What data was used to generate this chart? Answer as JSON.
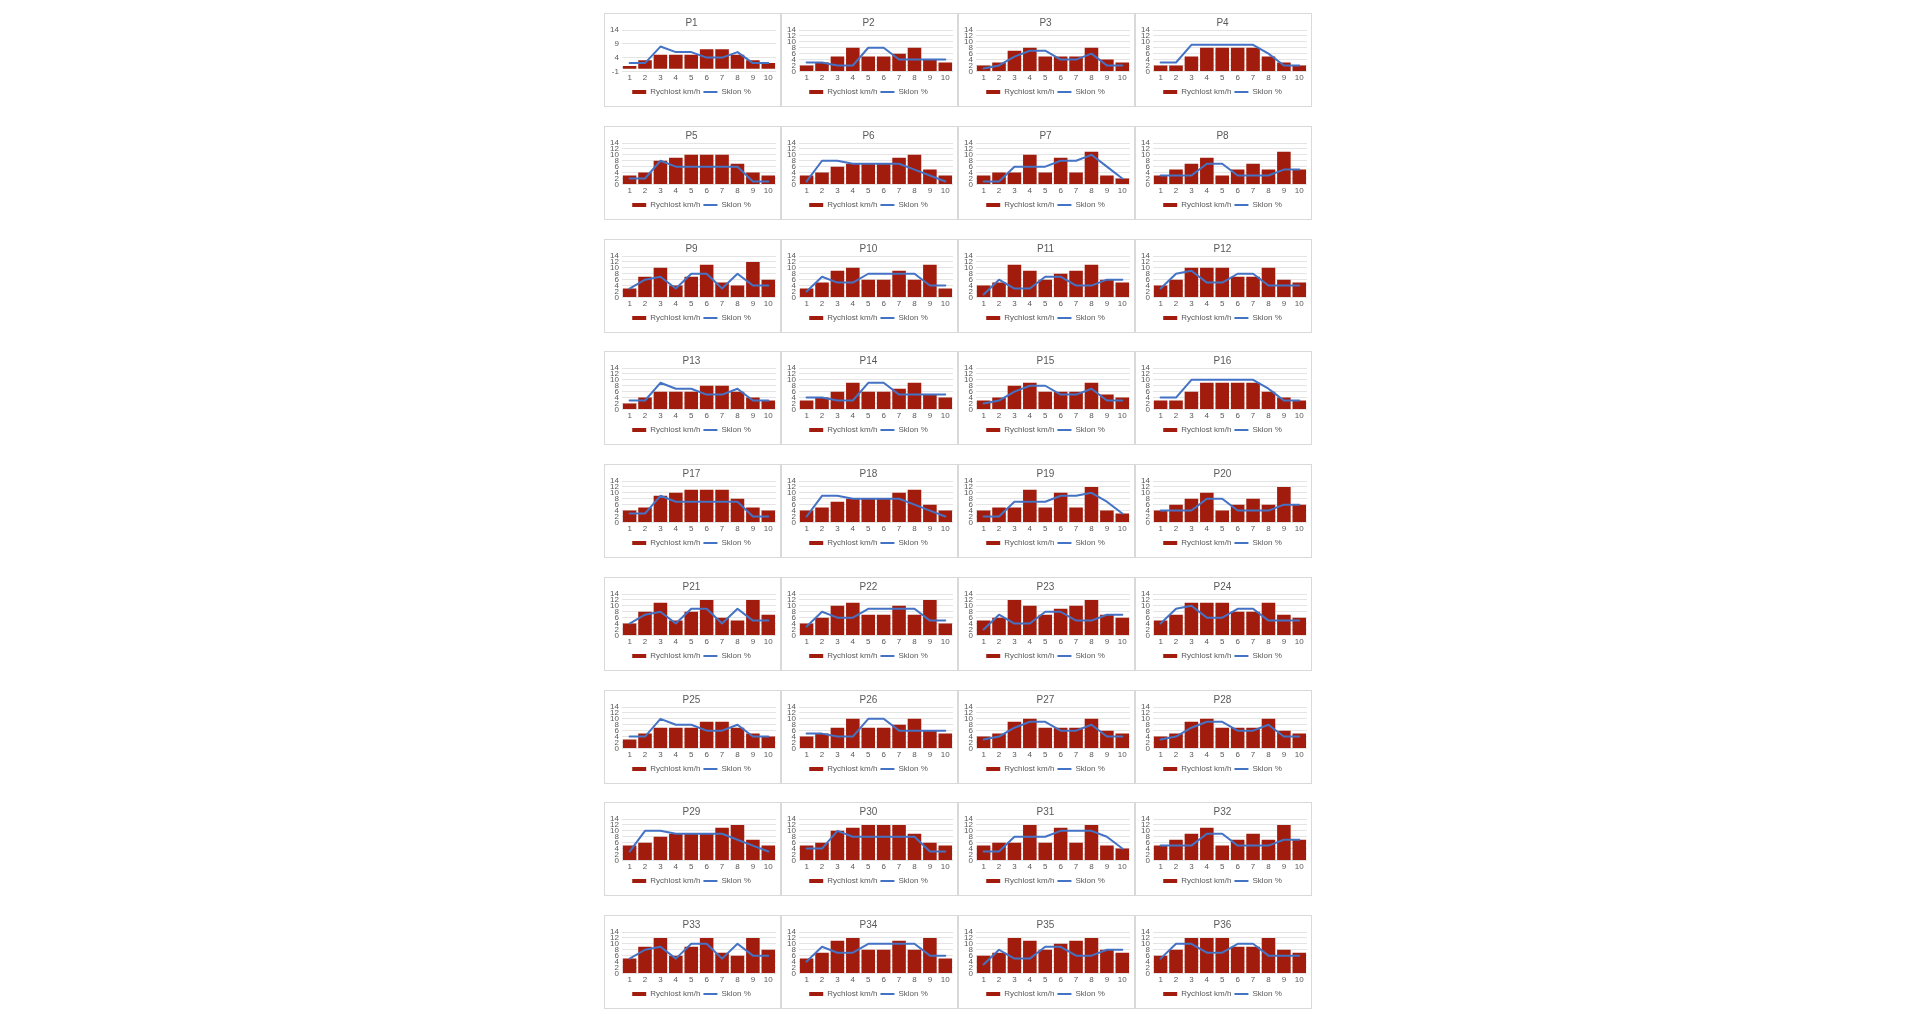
{
  "chart_data": [
    {
      "type": "bar",
      "title": "P1",
      "categories": [
        "1",
        "2",
        "3",
        "4",
        "5",
        "6",
        "7",
        "8",
        "9",
        "10"
      ],
      "series": [
        {
          "name": "Rychlost km/h",
          "color": "#a11c0d",
          "values": [
            1,
            3,
            5,
            5,
            5,
            7,
            7,
            5,
            3,
            2
          ]
        },
        {
          "name": "Sklon %",
          "type": "line",
          "color": "#4472c4",
          "values": [
            2,
            2,
            8,
            6,
            6,
            4,
            4,
            6,
            2,
            2
          ]
        }
      ],
      "ylim": [
        -1,
        14
      ],
      "yticks": [
        -1,
        4,
        9,
        14
      ],
      "grid": "y",
      "legend": "bottom"
    },
    {
      "type": "bar",
      "title": "P2",
      "categories": [
        "1",
        "2",
        "3",
        "4",
        "5",
        "6",
        "7",
        "8",
        "9",
        "10"
      ],
      "series": [
        {
          "name": "Rychlost km/h",
          "color": "#a11c0d",
          "values": [
            2,
            3,
            5,
            8,
            5,
            5,
            6,
            8,
            4,
            3
          ]
        },
        {
          "name": "Sklon %",
          "type": "line",
          "color": "#4472c4",
          "values": [
            3,
            3,
            2,
            2,
            8,
            8,
            4,
            4,
            4,
            4
          ]
        }
      ],
      "ylim": [
        0,
        14
      ],
      "yticks": [
        0,
        2,
        4,
        6,
        8,
        10,
        12,
        14
      ],
      "grid": "y",
      "legend": "bottom"
    },
    {
      "type": "bar",
      "title": "P3",
      "categories": [
        "1",
        "2",
        "3",
        "4",
        "5",
        "6",
        "7",
        "8",
        "9",
        "10"
      ],
      "series": [
        {
          "name": "Rychlost km/h",
          "color": "#a11c0d",
          "values": [
            2,
            3,
            7,
            8,
            5,
            5,
            5,
            8,
            4,
            3
          ]
        },
        {
          "name": "Sklon %",
          "type": "line",
          "color": "#4472c4",
          "values": [
            1,
            2,
            5,
            7,
            7,
            4,
            4,
            6,
            2,
            2
          ]
        }
      ],
      "ylim": [
        0,
        14
      ],
      "yticks": [
        0,
        2,
        4,
        6,
        8,
        10,
        12,
        14
      ],
      "grid": "y",
      "legend": "bottom"
    },
    {
      "type": "bar",
      "title": "P4",
      "categories": [
        "1",
        "2",
        "3",
        "4",
        "5",
        "6",
        "7",
        "8",
        "9",
        "10"
      ],
      "series": [
        {
          "name": "Rychlost km/h",
          "color": "#a11c0d",
          "values": [
            2,
            2,
            5,
            8,
            8,
            8,
            8,
            5,
            3,
            2
          ]
        },
        {
          "name": "Sklon %",
          "type": "line",
          "color": "#4472c4",
          "values": [
            3,
            3,
            9,
            9,
            9,
            9,
            9,
            6,
            2,
            2
          ]
        }
      ],
      "ylim": [
        0,
        14
      ],
      "yticks": [
        0,
        2,
        4,
        6,
        8,
        10,
        12,
        14
      ],
      "grid": "y",
      "legend": "bottom"
    },
    {
      "type": "bar",
      "title": "P5",
      "categories": [
        "1",
        "2",
        "3",
        "4",
        "5",
        "6",
        "7",
        "8",
        "9",
        "10"
      ],
      "series": [
        {
          "name": "Rychlost km/h",
          "color": "#a11c0d",
          "values": [
            3,
            4,
            8,
            9,
            10,
            10,
            10,
            7,
            4,
            3
          ]
        },
        {
          "name": "Sklon %",
          "type": "line",
          "color": "#4472c4",
          "values": [
            2,
            2,
            8,
            6,
            6,
            6,
            6,
            6,
            1,
            1
          ]
        }
      ],
      "ylim": [
        0,
        14
      ],
      "yticks": [
        0,
        2,
        4,
        6,
        8,
        10,
        12,
        14
      ],
      "grid": "y",
      "legend": "bottom"
    },
    {
      "type": "bar",
      "title": "P6",
      "categories": [
        "1",
        "2",
        "3",
        "4",
        "5",
        "6",
        "7",
        "8",
        "9",
        "10"
      ],
      "series": [
        {
          "name": "Rychlost km/h",
          "color": "#a11c0d",
          "values": [
            3,
            4,
            6,
            7,
            7,
            7,
            9,
            10,
            5,
            3
          ]
        },
        {
          "name": "Sklon %",
          "type": "line",
          "color": "#4472c4",
          "values": [
            1,
            8,
            8,
            7,
            7,
            7,
            7,
            5,
            3,
            1
          ]
        }
      ],
      "ylim": [
        0,
        14
      ],
      "yticks": [
        0,
        2,
        4,
        6,
        8,
        10,
        12,
        14
      ],
      "grid": "y",
      "legend": "bottom"
    },
    {
      "type": "bar",
      "title": "P7",
      "categories": [
        "1",
        "2",
        "3",
        "4",
        "5",
        "6",
        "7",
        "8",
        "9",
        "10"
      ],
      "series": [
        {
          "name": "Rychlost km/h",
          "color": "#a11c0d",
          "values": [
            3,
            4,
            4,
            10,
            4,
            9,
            4,
            11,
            3,
            2
          ]
        },
        {
          "name": "Sklon %",
          "type": "line",
          "color": "#4472c4",
          "values": [
            1,
            1,
            6,
            6,
            6,
            8,
            8,
            10,
            6,
            2
          ]
        }
      ],
      "ylim": [
        0,
        14
      ],
      "yticks": [
        0,
        2,
        4,
        6,
        8,
        10,
        12,
        14
      ],
      "grid": "y",
      "legend": "bottom"
    },
    {
      "type": "bar",
      "title": "P8",
      "categories": [
        "1",
        "2",
        "3",
        "4",
        "5",
        "6",
        "7",
        "8",
        "9",
        "10"
      ],
      "series": [
        {
          "name": "Rychlost km/h",
          "color": "#a11c0d",
          "values": [
            3,
            5,
            7,
            9,
            3,
            5,
            7,
            5,
            11,
            5
          ]
        },
        {
          "name": "Sklon %",
          "type": "line",
          "color": "#4472c4",
          "values": [
            3,
            3,
            3,
            7,
            7,
            3,
            3,
            3,
            5,
            5
          ]
        }
      ],
      "ylim": [
        0,
        14
      ],
      "yticks": [
        0,
        2,
        4,
        6,
        8,
        10,
        12,
        14
      ],
      "grid": "y",
      "legend": "bottom"
    },
    {
      "type": "bar",
      "title": "P9",
      "categories": [
        "1",
        "2",
        "3",
        "4",
        "5",
        "6",
        "7",
        "8",
        "9",
        "10"
      ],
      "series": [
        {
          "name": "Rychlost km/h",
          "color": "#a11c0d",
          "values": [
            3,
            7,
            10,
            4,
            7,
            11,
            5,
            4,
            12,
            6
          ]
        },
        {
          "name": "Sklon %",
          "type": "line",
          "color": "#4472c4",
          "values": [
            3,
            6,
            7,
            3,
            8,
            8,
            3,
            8,
            4,
            4
          ]
        }
      ],
      "ylim": [
        0,
        14
      ],
      "yticks": [
        0,
        2,
        4,
        6,
        8,
        10,
        12,
        14
      ],
      "grid": "y",
      "legend": "bottom"
    },
    {
      "type": "bar",
      "title": "P10",
      "categories": [
        "1",
        "2",
        "3",
        "4",
        "5",
        "6",
        "7",
        "8",
        "9",
        "10"
      ],
      "series": [
        {
          "name": "Rychlost km/h",
          "color": "#a11c0d",
          "values": [
            3,
            5,
            9,
            10,
            6,
            6,
            9,
            6,
            11,
            3
          ]
        },
        {
          "name": "Sklon %",
          "type": "line",
          "color": "#4472c4",
          "values": [
            2,
            7,
            5,
            5,
            8,
            8,
            8,
            8,
            4,
            4
          ]
        }
      ],
      "ylim": [
        0,
        14
      ],
      "yticks": [
        0,
        2,
        4,
        6,
        8,
        10,
        12,
        14
      ],
      "grid": "y",
      "legend": "bottom"
    },
    {
      "type": "bar",
      "title": "P11",
      "categories": [
        "1",
        "2",
        "3",
        "4",
        "5",
        "6",
        "7",
        "8",
        "9",
        "10"
      ],
      "series": [
        {
          "name": "Rychlost km/h",
          "color": "#a11c0d",
          "values": [
            4,
            5,
            11,
            9,
            6,
            8,
            9,
            11,
            6,
            5
          ]
        },
        {
          "name": "Sklon %",
          "type": "line",
          "color": "#4472c4",
          "values": [
            1,
            6,
            3,
            3,
            7,
            7,
            4,
            4,
            6,
            6
          ]
        }
      ],
      "ylim": [
        0,
        14
      ],
      "yticks": [
        0,
        2,
        4,
        6,
        8,
        10,
        12,
        14
      ],
      "grid": "y",
      "legend": "bottom"
    },
    {
      "type": "bar",
      "title": "P12",
      "categories": [
        "1",
        "2",
        "3",
        "4",
        "5",
        "6",
        "7",
        "8",
        "9",
        "10"
      ],
      "series": [
        {
          "name": "Rychlost km/h",
          "color": "#a11c0d",
          "values": [
            4,
            6,
            10,
            10,
            10,
            7,
            7,
            10,
            6,
            5
          ]
        },
        {
          "name": "Sklon %",
          "type": "line",
          "color": "#4472c4",
          "values": [
            3,
            8,
            9,
            5,
            5,
            8,
            8,
            4,
            4,
            4
          ]
        }
      ],
      "ylim": [
        0,
        14
      ],
      "yticks": [
        0,
        2,
        4,
        6,
        8,
        10,
        12,
        14
      ],
      "grid": "y",
      "legend": "bottom"
    },
    {
      "type": "bar",
      "title": "P13",
      "categories": [
        "1",
        "2",
        "3",
        "4",
        "5",
        "6",
        "7",
        "8",
        "9",
        "10"
      ],
      "series": [
        {
          "name": "Rychlost km/h",
          "color": "#a11c0d",
          "values": [
            2,
            4,
            6,
            6,
            6,
            8,
            8,
            6,
            4,
            3
          ]
        },
        {
          "name": "Sklon %",
          "type": "line",
          "color": "#4472c4",
          "values": [
            3,
            3,
            9,
            7,
            7,
            5,
            5,
            7,
            3,
            3
          ]
        }
      ],
      "ylim": [
        0,
        14
      ],
      "yticks": [
        0,
        2,
        4,
        6,
        8,
        10,
        12,
        14
      ],
      "grid": "y",
      "legend": "bottom"
    },
    {
      "type": "bar",
      "title": "P14",
      "categories": [
        "1",
        "2",
        "3",
        "4",
        "5",
        "6",
        "7",
        "8",
        "9",
        "10"
      ],
      "series": [
        {
          "name": "Rychlost km/h",
          "color": "#a11c0d",
          "values": [
            3,
            4,
            6,
            9,
            6,
            6,
            7,
            9,
            5,
            4
          ]
        },
        {
          "name": "Sklon %",
          "type": "line",
          "color": "#4472c4",
          "values": [
            4,
            4,
            3,
            3,
            9,
            9,
            5,
            5,
            5,
            5
          ]
        }
      ],
      "ylim": [
        0,
        14
      ],
      "yticks": [
        0,
        2,
        4,
        6,
        8,
        10,
        12,
        14
      ],
      "grid": "y",
      "legend": "bottom"
    },
    {
      "type": "bar",
      "title": "P15",
      "categories": [
        "1",
        "2",
        "3",
        "4",
        "5",
        "6",
        "7",
        "8",
        "9",
        "10"
      ],
      "series": [
        {
          "name": "Rychlost km/h",
          "color": "#a11c0d",
          "values": [
            3,
            4,
            8,
            9,
            6,
            6,
            6,
            9,
            5,
            4
          ]
        },
        {
          "name": "Sklon %",
          "type": "line",
          "color": "#4472c4",
          "values": [
            2,
            3,
            6,
            8,
            8,
            5,
            5,
            7,
            3,
            3
          ]
        }
      ],
      "ylim": [
        0,
        14
      ],
      "yticks": [
        0,
        2,
        4,
        6,
        8,
        10,
        12,
        14
      ],
      "grid": "y",
      "legend": "bottom"
    },
    {
      "type": "bar",
      "title": "P16",
      "categories": [
        "1",
        "2",
        "3",
        "4",
        "5",
        "6",
        "7",
        "8",
        "9",
        "10"
      ],
      "series": [
        {
          "name": "Rychlost km/h",
          "color": "#a11c0d",
          "values": [
            3,
            3,
            6,
            9,
            9,
            9,
            9,
            6,
            4,
            3
          ]
        },
        {
          "name": "Sklon %",
          "type": "line",
          "color": "#4472c4",
          "values": [
            4,
            4,
            10,
            10,
            10,
            10,
            10,
            7,
            3,
            3
          ]
        }
      ],
      "ylim": [
        0,
        14
      ],
      "yticks": [
        0,
        2,
        4,
        6,
        8,
        10,
        12,
        14
      ],
      "grid": "y",
      "legend": "bottom"
    },
    {
      "type": "bar",
      "title": "P17",
      "categories": [
        "1",
        "2",
        "3",
        "4",
        "5",
        "6",
        "7",
        "8",
        "9",
        "10"
      ],
      "series": [
        {
          "name": "Rychlost km/h",
          "color": "#a11c0d",
          "values": [
            4,
            5,
            9,
            10,
            11,
            11,
            11,
            8,
            5,
            4
          ]
        },
        {
          "name": "Sklon %",
          "type": "line",
          "color": "#4472c4",
          "values": [
            3,
            3,
            9,
            7,
            7,
            7,
            7,
            7,
            2,
            2
          ]
        }
      ],
      "ylim": [
        0,
        14
      ],
      "yticks": [
        0,
        2,
        4,
        6,
        8,
        10,
        12,
        14
      ],
      "grid": "y",
      "legend": "bottom"
    },
    {
      "type": "bar",
      "title": "P18",
      "categories": [
        "1",
        "2",
        "3",
        "4",
        "5",
        "6",
        "7",
        "8",
        "9",
        "10"
      ],
      "series": [
        {
          "name": "Rychlost km/h",
          "color": "#a11c0d",
          "values": [
            4,
            5,
            7,
            8,
            8,
            8,
            10,
            11,
            6,
            4
          ]
        },
        {
          "name": "Sklon %",
          "type": "line",
          "color": "#4472c4",
          "values": [
            2,
            9,
            9,
            8,
            8,
            8,
            8,
            6,
            4,
            2
          ]
        }
      ],
      "ylim": [
        0,
        14
      ],
      "yticks": [
        0,
        2,
        4,
        6,
        8,
        10,
        12,
        14
      ],
      "grid": "y",
      "legend": "bottom"
    },
    {
      "type": "bar",
      "title": "P19",
      "categories": [
        "1",
        "2",
        "3",
        "4",
        "5",
        "6",
        "7",
        "8",
        "9",
        "10"
      ],
      "series": [
        {
          "name": "Rychlost km/h",
          "color": "#a11c0d",
          "values": [
            4,
            5,
            5,
            11,
            5,
            10,
            5,
            12,
            4,
            3
          ]
        },
        {
          "name": "Sklon %",
          "type": "line",
          "color": "#4472c4",
          "values": [
            2,
            2,
            7,
            7,
            7,
            9,
            9,
            10,
            7,
            3
          ]
        }
      ],
      "ylim": [
        0,
        14
      ],
      "yticks": [
        0,
        2,
        4,
        6,
        8,
        10,
        12,
        14
      ],
      "grid": "y",
      "legend": "bottom"
    },
    {
      "type": "bar",
      "title": "P20",
      "categories": [
        "1",
        "2",
        "3",
        "4",
        "5",
        "6",
        "7",
        "8",
        "9",
        "10"
      ],
      "series": [
        {
          "name": "Rychlost km/h",
          "color": "#a11c0d",
          "values": [
            4,
            6,
            8,
            10,
            4,
            6,
            8,
            6,
            12,
            6
          ]
        },
        {
          "name": "Sklon %",
          "type": "line",
          "color": "#4472c4",
          "values": [
            4,
            4,
            4,
            8,
            8,
            4,
            4,
            4,
            6,
            6
          ]
        }
      ],
      "ylim": [
        0,
        14
      ],
      "yticks": [
        0,
        2,
        4,
        6,
        8,
        10,
        12,
        14
      ],
      "grid": "y",
      "legend": "bottom"
    },
    {
      "type": "bar",
      "title": "P21",
      "categories": [
        "1",
        "2",
        "3",
        "4",
        "5",
        "6",
        "7",
        "8",
        "9",
        "10"
      ],
      "series": [
        {
          "name": "Rychlost km/h",
          "color": "#a11c0d",
          "values": [
            4,
            8,
            11,
            5,
            8,
            12,
            6,
            5,
            12,
            7
          ]
        },
        {
          "name": "Sklon %",
          "type": "line",
          "color": "#4472c4",
          "values": [
            4,
            7,
            8,
            4,
            9,
            9,
            4,
            9,
            5,
            5
          ]
        }
      ],
      "ylim": [
        0,
        14
      ],
      "yticks": [
        0,
        2,
        4,
        6,
        8,
        10,
        12,
        14
      ],
      "grid": "y",
      "legend": "bottom"
    },
    {
      "type": "bar",
      "title": "P22",
      "categories": [
        "1",
        "2",
        "3",
        "4",
        "5",
        "6",
        "7",
        "8",
        "9",
        "10"
      ],
      "series": [
        {
          "name": "Rychlost km/h",
          "color": "#a11c0d",
          "values": [
            4,
            6,
            10,
            11,
            7,
            7,
            10,
            7,
            12,
            4
          ]
        },
        {
          "name": "Sklon %",
          "type": "line",
          "color": "#4472c4",
          "values": [
            3,
            8,
            6,
            6,
            9,
            9,
            9,
            9,
            5,
            5
          ]
        }
      ],
      "ylim": [
        0,
        14
      ],
      "yticks": [
        0,
        2,
        4,
        6,
        8,
        10,
        12,
        14
      ],
      "grid": "y",
      "legend": "bottom"
    },
    {
      "type": "bar",
      "title": "P23",
      "categories": [
        "1",
        "2",
        "3",
        "4",
        "5",
        "6",
        "7",
        "8",
        "9",
        "10"
      ],
      "series": [
        {
          "name": "Rychlost km/h",
          "color": "#a11c0d",
          "values": [
            5,
            6,
            12,
            10,
            7,
            9,
            10,
            12,
            7,
            6
          ]
        },
        {
          "name": "Sklon %",
          "type": "line",
          "color": "#4472c4",
          "values": [
            2,
            7,
            4,
            4,
            8,
            8,
            5,
            5,
            7,
            7
          ]
        }
      ],
      "ylim": [
        0,
        14
      ],
      "yticks": [
        0,
        2,
        4,
        6,
        8,
        10,
        12,
        14
      ],
      "grid": "y",
      "legend": "bottom"
    },
    {
      "type": "bar",
      "title": "P24",
      "categories": [
        "1",
        "2",
        "3",
        "4",
        "5",
        "6",
        "7",
        "8",
        "9",
        "10"
      ],
      "series": [
        {
          "name": "Rychlost km/h",
          "color": "#a11c0d",
          "values": [
            5,
            7,
            11,
            11,
            11,
            8,
            8,
            11,
            7,
            6
          ]
        },
        {
          "name": "Sklon %",
          "type": "line",
          "color": "#4472c4",
          "values": [
            4,
            9,
            10,
            6,
            6,
            9,
            9,
            5,
            5,
            5
          ]
        }
      ],
      "ylim": [
        0,
        14
      ],
      "yticks": [
        0,
        2,
        4,
        6,
        8,
        10,
        12,
        14
      ],
      "grid": "y",
      "legend": "bottom"
    },
    {
      "type": "bar",
      "title": "P25",
      "categories": [
        "1",
        "2",
        "3",
        "4",
        "5",
        "6",
        "7",
        "8",
        "9",
        "10"
      ],
      "series": [
        {
          "name": "Rychlost km/h",
          "color": "#a11c0d",
          "values": [
            3,
            5,
            7,
            7,
            7,
            9,
            9,
            7,
            5,
            4
          ]
        },
        {
          "name": "Sklon %",
          "type": "line",
          "color": "#4472c4",
          "values": [
            4,
            4,
            10,
            8,
            8,
            6,
            6,
            8,
            4,
            4
          ]
        }
      ],
      "ylim": [
        0,
        14
      ],
      "yticks": [
        0,
        2,
        4,
        6,
        8,
        10,
        12,
        14
      ],
      "grid": "y",
      "legend": "bottom"
    },
    {
      "type": "bar",
      "title": "P26",
      "categories": [
        "1",
        "2",
        "3",
        "4",
        "5",
        "6",
        "7",
        "8",
        "9",
        "10"
      ],
      "series": [
        {
          "name": "Rychlost km/h",
          "color": "#a11c0d",
          "values": [
            4,
            5,
            7,
            10,
            7,
            7,
            8,
            10,
            6,
            5
          ]
        },
        {
          "name": "Sklon %",
          "type": "line",
          "color": "#4472c4",
          "values": [
            5,
            5,
            4,
            4,
            10,
            10,
            6,
            6,
            6,
            6
          ]
        }
      ],
      "ylim": [
        0,
        14
      ],
      "yticks": [
        0,
        2,
        4,
        6,
        8,
        10,
        12,
        14
      ],
      "grid": "y",
      "legend": "bottom"
    },
    {
      "type": "bar",
      "title": "P27",
      "categories": [
        "1",
        "2",
        "3",
        "4",
        "5",
        "6",
        "7",
        "8",
        "9",
        "10"
      ],
      "series": [
        {
          "name": "Rychlost km/h",
          "color": "#a11c0d",
          "values": [
            4,
            5,
            9,
            10,
            7,
            7,
            7,
            10,
            6,
            5
          ]
        },
        {
          "name": "Sklon %",
          "type": "line",
          "color": "#4472c4",
          "values": [
            3,
            4,
            7,
            9,
            9,
            6,
            6,
            8,
            4,
            4
          ]
        }
      ],
      "ylim": [
        0,
        14
      ],
      "yticks": [
        0,
        2,
        4,
        6,
        8,
        10,
        12,
        14
      ],
      "grid": "y",
      "legend": "bottom"
    },
    {
      "type": "bar",
      "title": "P28",
      "categories": [
        "1",
        "2",
        "3",
        "4",
        "5",
        "6",
        "7",
        "8",
        "9",
        "10"
      ],
      "series": [
        {
          "name": "Rychlost km/h",
          "color": "#a11c0d",
          "values": [
            4,
            5,
            9,
            10,
            7,
            7,
            7,
            10,
            6,
            5
          ]
        },
        {
          "name": "Sklon %",
          "type": "line",
          "color": "#4472c4",
          "values": [
            3,
            4,
            7,
            9,
            9,
            6,
            6,
            8,
            4,
            4
          ]
        }
      ],
      "ylim": [
        0,
        14
      ],
      "yticks": [
        0,
        2,
        4,
        6,
        8,
        10,
        12,
        14
      ],
      "grid": "y",
      "legend": "bottom"
    },
    {
      "type": "bar",
      "title": "P29",
      "categories": [
        "1",
        "2",
        "3",
        "4",
        "5",
        "6",
        "7",
        "8",
        "9",
        "10"
      ],
      "series": [
        {
          "name": "Rychlost km/h",
          "color": "#a11c0d",
          "values": [
            5,
            6,
            8,
            9,
            9,
            9,
            11,
            12,
            7,
            5
          ]
        },
        {
          "name": "Sklon %",
          "type": "line",
          "color": "#4472c4",
          "values": [
            3,
            10,
            10,
            9,
            9,
            9,
            9,
            7,
            5,
            3
          ]
        }
      ],
      "ylim": [
        0,
        14
      ],
      "yticks": [
        0,
        2,
        4,
        6,
        8,
        10,
        12,
        14
      ],
      "grid": "y",
      "legend": "bottom"
    },
    {
      "type": "bar",
      "title": "P30",
      "categories": [
        "1",
        "2",
        "3",
        "4",
        "5",
        "6",
        "7",
        "8",
        "9",
        "10"
      ],
      "series": [
        {
          "name": "Rychlost km/h",
          "color": "#a11c0d",
          "values": [
            5,
            6,
            10,
            11,
            12,
            12,
            12,
            9,
            6,
            5
          ]
        },
        {
          "name": "Sklon %",
          "type": "line",
          "color": "#4472c4",
          "values": [
            4,
            4,
            10,
            8,
            8,
            8,
            8,
            8,
            3,
            3
          ]
        }
      ],
      "ylim": [
        0,
        14
      ],
      "yticks": [
        0,
        2,
        4,
        6,
        8,
        10,
        12,
        14
      ],
      "grid": "y",
      "legend": "bottom"
    },
    {
      "type": "bar",
      "title": "P31",
      "categories": [
        "1",
        "2",
        "3",
        "4",
        "5",
        "6",
        "7",
        "8",
        "9",
        "10"
      ],
      "series": [
        {
          "name": "Rychlost km/h",
          "color": "#a11c0d",
          "values": [
            5,
            6,
            6,
            12,
            6,
            11,
            6,
            12,
            5,
            4
          ]
        },
        {
          "name": "Sklon %",
          "type": "line",
          "color": "#4472c4",
          "values": [
            3,
            3,
            8,
            8,
            8,
            10,
            10,
            10,
            8,
            4
          ]
        }
      ],
      "ylim": [
        0,
        14
      ],
      "yticks": [
        0,
        2,
        4,
        6,
        8,
        10,
        12,
        14
      ],
      "grid": "y",
      "legend": "bottom"
    },
    {
      "type": "bar",
      "title": "P32",
      "categories": [
        "1",
        "2",
        "3",
        "4",
        "5",
        "6",
        "7",
        "8",
        "9",
        "10"
      ],
      "series": [
        {
          "name": "Rychlost km/h",
          "color": "#a11c0d",
          "values": [
            5,
            7,
            9,
            11,
            5,
            7,
            9,
            7,
            12,
            7
          ]
        },
        {
          "name": "Sklon %",
          "type": "line",
          "color": "#4472c4",
          "values": [
            5,
            5,
            5,
            9,
            9,
            5,
            5,
            5,
            7,
            7
          ]
        }
      ],
      "ylim": [
        0,
        14
      ],
      "yticks": [
        0,
        2,
        4,
        6,
        8,
        10,
        12,
        14
      ],
      "grid": "y",
      "legend": "bottom"
    },
    {
      "type": "bar",
      "title": "P33",
      "categories": [
        "1",
        "2",
        "3",
        "4",
        "5",
        "6",
        "7",
        "8",
        "9",
        "10"
      ],
      "series": [
        {
          "name": "Rychlost km/h",
          "color": "#a11c0d",
          "values": [
            5,
            9,
            12,
            6,
            9,
            12,
            7,
            6,
            12,
            8
          ]
        },
        {
          "name": "Sklon %",
          "type": "line",
          "color": "#4472c4",
          "values": [
            5,
            8,
            9,
            5,
            10,
            10,
            5,
            10,
            6,
            6
          ]
        }
      ],
      "ylim": [
        0,
        14
      ],
      "yticks": [
        0,
        2,
        4,
        6,
        8,
        10,
        12,
        14
      ],
      "grid": "y",
      "legend": "bottom"
    },
    {
      "type": "bar",
      "title": "P34",
      "categories": [
        "1",
        "2",
        "3",
        "4",
        "5",
        "6",
        "7",
        "8",
        "9",
        "10"
      ],
      "series": [
        {
          "name": "Rychlost km/h",
          "color": "#a11c0d",
          "values": [
            5,
            7,
            11,
            12,
            8,
            8,
            11,
            8,
            12,
            5
          ]
        },
        {
          "name": "Sklon %",
          "type": "line",
          "color": "#4472c4",
          "values": [
            4,
            9,
            7,
            7,
            10,
            10,
            10,
            10,
            6,
            6
          ]
        }
      ],
      "ylim": [
        0,
        14
      ],
      "yticks": [
        0,
        2,
        4,
        6,
        8,
        10,
        12,
        14
      ],
      "grid": "y",
      "legend": "bottom"
    },
    {
      "type": "bar",
      "title": "P35",
      "categories": [
        "1",
        "2",
        "3",
        "4",
        "5",
        "6",
        "7",
        "8",
        "9",
        "10"
      ],
      "series": [
        {
          "name": "Rychlost km/h",
          "color": "#a11c0d",
          "values": [
            6,
            7,
            12,
            11,
            8,
            10,
            11,
            12,
            8,
            7
          ]
        },
        {
          "name": "Sklon %",
          "type": "line",
          "color": "#4472c4",
          "values": [
            3,
            8,
            5,
            5,
            9,
            9,
            6,
            6,
            8,
            8
          ]
        }
      ],
      "ylim": [
        0,
        14
      ],
      "yticks": [
        0,
        2,
        4,
        6,
        8,
        10,
        12,
        14
      ],
      "grid": "y",
      "legend": "bottom"
    },
    {
      "type": "bar",
      "title": "P36",
      "categories": [
        "1",
        "2",
        "3",
        "4",
        "5",
        "6",
        "7",
        "8",
        "9",
        "10"
      ],
      "series": [
        {
          "name": "Rychlost km/h",
          "color": "#a11c0d",
          "values": [
            6,
            8,
            12,
            12,
            12,
            9,
            9,
            12,
            8,
            7
          ]
        },
        {
          "name": "Sklon %",
          "type": "line",
          "color": "#4472c4",
          "values": [
            5,
            10,
            10,
            7,
            7,
            10,
            10,
            6,
            6,
            6
          ]
        }
      ],
      "ylim": [
        0,
        14
      ],
      "yticks": [
        0,
        2,
        4,
        6,
        8,
        10,
        12,
        14
      ],
      "grid": "y",
      "legend": "bottom"
    }
  ]
}
